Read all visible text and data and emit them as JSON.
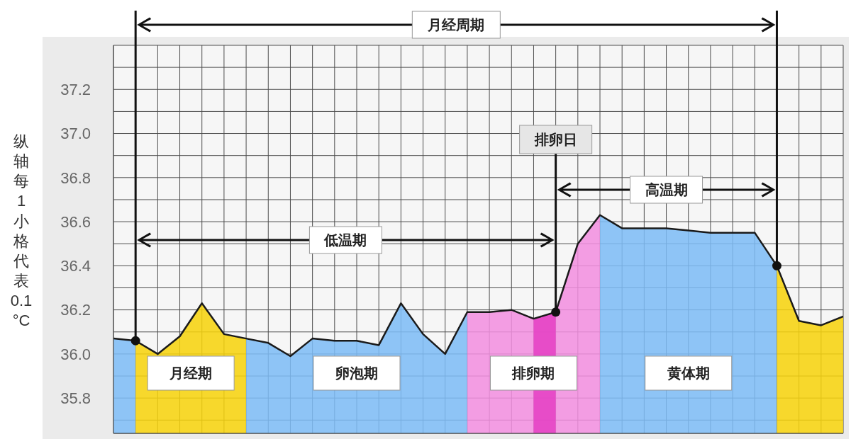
{
  "chart_data": {
    "type": "area",
    "ylabel": "纵轴每1小格代表0.1°C",
    "categories": [
      null,
      null,
      null,
      null,
      null,
      null,
      null,
      null,
      null,
      null,
      null,
      null,
      null,
      null,
      null,
      null,
      null,
      null,
      null,
      null,
      null,
      null,
      null,
      null,
      null,
      null,
      null,
      null,
      null,
      null,
      null,
      null,
      null,
      null
    ],
    "ylim": [
      35.64,
      37.4
    ],
    "yticks": [
      {
        "value": 35.7,
        "label": null
      },
      35.8,
      {
        "value": 35.9,
        "label": null
      },
      {
        "value": 36,
        "label": "36.0"
      },
      {
        "value": 36.1,
        "label": null
      },
      36.2,
      {
        "value": 36.3,
        "label": null
      },
      36.4,
      {
        "value": 36.5,
        "label": null
      },
      36.6,
      {
        "value": 36.7,
        "label": null
      },
      36.8,
      {
        "value": 36.9,
        "label": null
      },
      {
        "value": 37,
        "label": "37.0"
      },
      {
        "value": 37.1,
        "label": null
      },
      37.2,
      {
        "value": 37.3,
        "label": null
      },
      {
        "value": 37.4,
        "label": null
      }
    ],
    "grid": true,
    "series": [
      {
        "color": "#7dbcf6",
        "values": [
          36.07,
          36.06,
          null,
          null,
          null,
          null,
          null,
          null,
          null,
          null,
          null,
          null,
          null,
          null,
          null,
          null,
          null,
          null,
          null,
          null,
          null,
          null,
          null,
          null,
          null,
          null,
          null,
          null,
          null,
          null,
          null,
          null,
          null,
          null
        ]
      },
      {
        "name": "月经期",
        "color": "#f7d30a",
        "values": [
          null,
          36.06,
          36.0,
          36.08,
          36.23,
          36.09,
          36.07,
          null,
          null,
          null,
          null,
          null,
          null,
          null,
          null,
          null,
          null,
          null,
          null,
          null,
          null,
          null,
          null,
          null,
          null,
          null,
          null,
          null,
          null,
          null,
          null,
          null,
          null,
          null
        ]
      },
      {
        "name": "卵泡期",
        "color": "#7dbcf6",
        "values": [
          null,
          null,
          null,
          null,
          null,
          null,
          36.07,
          36.05,
          35.99,
          36.07,
          36.06,
          36.06,
          36.04,
          36.23,
          36.09,
          36.0,
          36.19,
          null,
          null,
          null,
          null,
          null,
          null,
          null,
          null,
          null,
          null,
          null,
          null,
          null,
          null,
          null,
          null,
          null
        ]
      },
      {
        "name": "排卵期",
        "color": "#f28ee0",
        "values": [
          null,
          null,
          null,
          null,
          null,
          null,
          null,
          null,
          null,
          null,
          null,
          null,
          null,
          null,
          null,
          null,
          36.19,
          36.19,
          36.2,
          36.16,
          36.19,
          36.5,
          36.63,
          null,
          null,
          null,
          null,
          null,
          null,
          null,
          null,
          null,
          null,
          null
        ]
      },
      {
        "color": "#e43fc4",
        "values": [
          null,
          null,
          null,
          null,
          null,
          null,
          null,
          null,
          null,
          null,
          null,
          null,
          null,
          null,
          null,
          null,
          null,
          null,
          null,
          36.16,
          36.19,
          null,
          null,
          null,
          null,
          null,
          null,
          null,
          null,
          null,
          null,
          null,
          null,
          null
        ]
      },
      {
        "name": "黄体期",
        "color": "#7dbcf6",
        "values": [
          null,
          null,
          null,
          null,
          null,
          null,
          null,
          null,
          null,
          null,
          null,
          null,
          null,
          null,
          null,
          null,
          null,
          null,
          null,
          null,
          null,
          null,
          36.63,
          36.57,
          36.57,
          36.57,
          36.56,
          36.55,
          36.55,
          36.55,
          36.4,
          null,
          null,
          null
        ]
      },
      {
        "color": "#f7d30a",
        "values": [
          null,
          null,
          null,
          null,
          null,
          null,
          null,
          null,
          null,
          null,
          null,
          null,
          null,
          null,
          null,
          null,
          null,
          null,
          null,
          null,
          null,
          null,
          null,
          null,
          null,
          null,
          null,
          null,
          null,
          null,
          36.4,
          36.15,
          36.13,
          36.17
        ]
      },
      {
        "type": "line",
        "color": "#1a1a1a",
        "values": [
          36.07,
          36.06,
          36.0,
          36.08,
          36.23,
          36.09,
          36.07,
          36.05,
          35.99,
          36.07,
          36.06,
          36.06,
          36.04,
          36.23,
          36.09,
          36.0,
          36.19,
          36.19,
          36.2,
          36.16,
          36.19,
          36.5,
          36.63,
          36.57,
          36.57,
          36.57,
          36.56,
          36.55,
          36.55,
          36.55,
          36.4,
          36.15,
          36.13,
          36.17
        ]
      }
    ],
    "annotations": [
      "月经周期",
      "低温期",
      "高温期",
      "排卵日"
    ]
  }
}
